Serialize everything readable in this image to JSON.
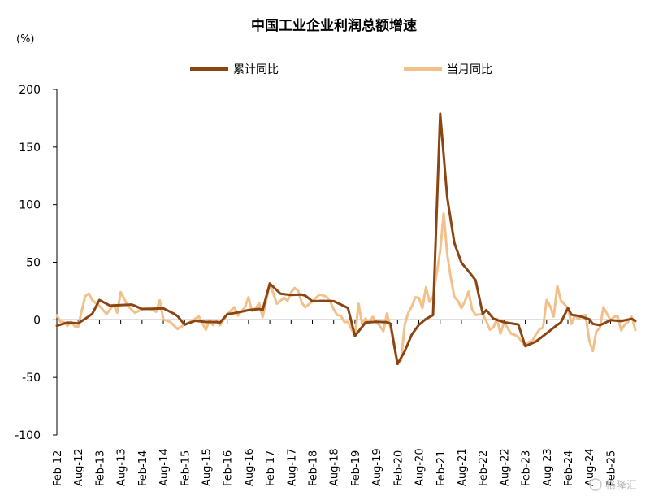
{
  "chart_data": {
    "type": "line",
    "title": "中国工业企业利润总额增速",
    "unit_label": "(%)",
    "ylim": [
      -100,
      200
    ],
    "yticks": [
      200,
      150,
      100,
      50,
      0,
      -50,
      -100
    ],
    "x_tick_labels": [
      "Feb-12",
      "Aug-12",
      "Feb-13",
      "Aug-13",
      "Feb-14",
      "Aug-14",
      "Feb-15",
      "Aug-15",
      "Feb-16",
      "Aug-16",
      "Feb-17",
      "Aug-17",
      "Feb-18",
      "Aug-18",
      "Feb-19",
      "Aug-19",
      "Feb-20",
      "Aug-20",
      "Feb-21",
      "Aug-21",
      "Feb-22",
      "Aug-22",
      "Feb-23",
      "Aug-23",
      "Feb-24",
      "Aug-24",
      "Feb-25"
    ],
    "x_range": {
      "start": "2012-02",
      "end": "2025-09"
    },
    "legend_position": "top",
    "grid": false,
    "series": [
      {
        "name": "累计同比",
        "color": "#8B4513",
        "points": [
          [
            "2012-02",
            -5.2
          ],
          [
            "2012-05",
            -2.4
          ],
          [
            "2012-08",
            -3.1
          ],
          [
            "2012-11",
            3.0
          ],
          [
            "2012-12",
            5.3
          ],
          [
            "2013-02",
            17.2
          ],
          [
            "2013-05",
            12.3
          ],
          [
            "2013-08",
            12.8
          ],
          [
            "2013-11",
            13.2
          ],
          [
            "2013-12",
            12.2
          ],
          [
            "2014-02",
            9.4
          ],
          [
            "2014-05",
            9.6
          ],
          [
            "2014-08",
            10.0
          ],
          [
            "2014-11",
            5.3
          ],
          [
            "2014-12",
            3.3
          ],
          [
            "2015-02",
            -4.2
          ],
          [
            "2015-05",
            -0.8
          ],
          [
            "2015-08",
            -1.9
          ],
          [
            "2015-11",
            -1.9
          ],
          [
            "2015-12",
            -2.3
          ],
          [
            "2016-02",
            4.8
          ],
          [
            "2016-05",
            6.4
          ],
          [
            "2016-08",
            8.4
          ],
          [
            "2016-11",
            9.4
          ],
          [
            "2016-12",
            8.5
          ],
          [
            "2017-02",
            31.5
          ],
          [
            "2017-05",
            22.7
          ],
          [
            "2017-08",
            21.6
          ],
          [
            "2017-11",
            21.9
          ],
          [
            "2017-12",
            21.0
          ],
          [
            "2018-02",
            16.1
          ],
          [
            "2018-05",
            16.5
          ],
          [
            "2018-08",
            16.2
          ],
          [
            "2018-11",
            11.8
          ],
          [
            "2018-12",
            10.3
          ],
          [
            "2019-02",
            -14.0
          ],
          [
            "2019-05",
            -2.3
          ],
          [
            "2019-08",
            -1.7
          ],
          [
            "2019-11",
            -2.1
          ],
          [
            "2019-12",
            -3.3
          ],
          [
            "2020-02",
            -38.3
          ],
          [
            "2020-04",
            -27.4
          ],
          [
            "2020-06",
            -12.8
          ],
          [
            "2020-08",
            -4.4
          ],
          [
            "2020-10",
            0.7
          ],
          [
            "2020-12",
            4.1
          ],
          [
            "2021-02",
            178.9
          ],
          [
            "2021-04",
            106.0
          ],
          [
            "2021-06",
            66.9
          ],
          [
            "2021-08",
            49.5
          ],
          [
            "2021-10",
            42.2
          ],
          [
            "2021-12",
            34.3
          ],
          [
            "2022-02",
            5.0
          ],
          [
            "2022-03",
            8.5
          ],
          [
            "2022-05",
            1.0
          ],
          [
            "2022-08",
            -2.1
          ],
          [
            "2022-11",
            -3.6
          ],
          [
            "2022-12",
            -4.0
          ],
          [
            "2023-02",
            -22.9
          ],
          [
            "2023-05",
            -18.8
          ],
          [
            "2023-08",
            -11.7
          ],
          [
            "2023-11",
            -4.4
          ],
          [
            "2023-12",
            -2.3
          ],
          [
            "2024-02",
            10.2
          ],
          [
            "2024-03",
            4.3
          ],
          [
            "2024-05",
            3.4
          ],
          [
            "2024-08",
            0.5
          ],
          [
            "2024-09",
            -3.5
          ],
          [
            "2024-11",
            -4.7
          ],
          [
            "2024-12",
            -3.3
          ],
          [
            "2025-02",
            -0.3
          ],
          [
            "2025-05",
            -1.1
          ],
          [
            "2025-08",
            0.9
          ],
          [
            "2025-09",
            -1.0
          ]
        ]
      },
      {
        "name": "当月同比",
        "color": "#F4C08A",
        "points": [
          [
            "2012-02",
            4.0
          ],
          [
            "2012-03",
            -1.5
          ],
          [
            "2012-04",
            -2.0
          ],
          [
            "2012-05",
            -5.3
          ],
          [
            "2012-06",
            -1.7
          ],
          [
            "2012-07",
            -5.4
          ],
          [
            "2012-08",
            -6.2
          ],
          [
            "2012-09",
            7.8
          ],
          [
            "2012-10",
            20.5
          ],
          [
            "2012-11",
            22.8
          ],
          [
            "2012-12",
            17.0
          ],
          [
            "2013-02",
            12.0
          ],
          [
            "2013-04",
            5.0
          ],
          [
            "2013-06",
            13.0
          ],
          [
            "2013-07",
            6.0
          ],
          [
            "2013-08",
            24.0
          ],
          [
            "2013-10",
            12.0
          ],
          [
            "2013-12",
            6.0
          ],
          [
            "2014-02",
            9.4
          ],
          [
            "2014-04",
            9.6
          ],
          [
            "2014-06",
            7.0
          ],
          [
            "2014-07",
            17.0
          ],
          [
            "2014-08",
            0.4
          ],
          [
            "2014-10",
            -2.0
          ],
          [
            "2014-12",
            -8.0
          ],
          [
            "2015-02",
            -4.2
          ],
          [
            "2015-04",
            -1.0
          ],
          [
            "2015-06",
            3.0
          ],
          [
            "2015-08",
            -8.8
          ],
          [
            "2015-09",
            -0.1
          ],
          [
            "2015-10",
            -4.6
          ],
          [
            "2015-11",
            -1.4
          ],
          [
            "2015-12",
            -4.7
          ],
          [
            "2016-02",
            4.8
          ],
          [
            "2016-04",
            11.0
          ],
          [
            "2016-05",
            3.7
          ],
          [
            "2016-07",
            11.0
          ],
          [
            "2016-08",
            19.5
          ],
          [
            "2016-09",
            7.7
          ],
          [
            "2016-10",
            9.8
          ],
          [
            "2016-11",
            14.5
          ],
          [
            "2016-12",
            2.3
          ],
          [
            "2017-02",
            31.5
          ],
          [
            "2017-04",
            14.0
          ],
          [
            "2017-06",
            19.1
          ],
          [
            "2017-07",
            16.5
          ],
          [
            "2017-08",
            24.0
          ],
          [
            "2017-09",
            27.7
          ],
          [
            "2017-10",
            25.1
          ],
          [
            "2017-11",
            14.9
          ],
          [
            "2017-12",
            10.8
          ],
          [
            "2018-02",
            16.1
          ],
          [
            "2018-04",
            21.9
          ],
          [
            "2018-05",
            21.1
          ],
          [
            "2018-06",
            20.0
          ],
          [
            "2018-07",
            16.2
          ],
          [
            "2018-08",
            9.2
          ],
          [
            "2018-09",
            4.1
          ],
          [
            "2018-10",
            3.6
          ],
          [
            "2018-11",
            -1.8
          ],
          [
            "2018-12",
            -1.9
          ],
          [
            "2019-02",
            -14.0
          ],
          [
            "2019-03",
            13.9
          ],
          [
            "2019-04",
            -3.7
          ],
          [
            "2019-05",
            1.1
          ],
          [
            "2019-06",
            -3.1
          ],
          [
            "2019-07",
            2.6
          ],
          [
            "2019-08",
            -2.0
          ],
          [
            "2019-09",
            -5.3
          ],
          [
            "2019-10",
            -9.9
          ],
          [
            "2019-11",
            5.4
          ],
          [
            "2019-12",
            -6.4
          ],
          [
            "2020-02",
            -38.3
          ],
          [
            "2020-03",
            -34.9
          ],
          [
            "2020-04",
            -4.3
          ],
          [
            "2020-05",
            6.0
          ],
          [
            "2020-06",
            11.5
          ],
          [
            "2020-07",
            19.6
          ],
          [
            "2020-08",
            19.1
          ],
          [
            "2020-09",
            10.1
          ],
          [
            "2020-10",
            28.2
          ],
          [
            "2020-11",
            15.5
          ],
          [
            "2020-12",
            20.1
          ],
          [
            "2021-02",
            60.0
          ],
          [
            "2021-03",
            92.3
          ],
          [
            "2021-04",
            57.0
          ],
          [
            "2021-05",
            36.4
          ],
          [
            "2021-06",
            20.0
          ],
          [
            "2021-07",
            16.4
          ],
          [
            "2021-08",
            10.1
          ],
          [
            "2021-09",
            16.3
          ],
          [
            "2021-10",
            24.6
          ],
          [
            "2021-11",
            9.0
          ],
          [
            "2021-12",
            4.2
          ],
          [
            "2022-02",
            5.0
          ],
          [
            "2022-03",
            -1.0
          ],
          [
            "2022-04",
            -8.5
          ],
          [
            "2022-05",
            -6.5
          ],
          [
            "2022-06",
            0.8
          ],
          [
            "2022-07",
            -12.0
          ],
          [
            "2022-08",
            -2.1
          ],
          [
            "2022-09",
            -7.0
          ],
          [
            "2022-10",
            -12.0
          ],
          [
            "2022-11",
            -13.0
          ],
          [
            "2022-12",
            -15.0
          ],
          [
            "2023-02",
            -22.9
          ],
          [
            "2023-03",
            -19.2
          ],
          [
            "2023-04",
            -18.2
          ],
          [
            "2023-05",
            -12.6
          ],
          [
            "2023-06",
            -8.3
          ],
          [
            "2023-07",
            -6.7
          ],
          [
            "2023-08",
            17.2
          ],
          [
            "2023-09",
            11.9
          ],
          [
            "2023-10",
            2.7
          ],
          [
            "2023-11",
            29.5
          ],
          [
            "2023-12",
            16.8
          ],
          [
            "2024-02",
            10.2
          ],
          [
            "2024-03",
            -3.5
          ],
          [
            "2024-04",
            4.0
          ],
          [
            "2024-05",
            0.7
          ],
          [
            "2024-06",
            3.6
          ],
          [
            "2024-07",
            4.1
          ],
          [
            "2024-08",
            -17.8
          ],
          [
            "2024-09",
            -27.1
          ],
          [
            "2024-10",
            -10.0
          ],
          [
            "2024-11",
            -7.3
          ],
          [
            "2024-12",
            11.0
          ],
          [
            "2025-02",
            -0.3
          ],
          [
            "2025-03",
            2.6
          ],
          [
            "2025-04",
            3.0
          ],
          [
            "2025-05",
            -9.1
          ],
          [
            "2025-06",
            -4.3
          ],
          [
            "2025-07",
            -1.5
          ],
          [
            "2025-08",
            2.6
          ],
          [
            "2025-09",
            -9.0
          ]
        ]
      }
    ]
  },
  "watermark": "格隆汇"
}
